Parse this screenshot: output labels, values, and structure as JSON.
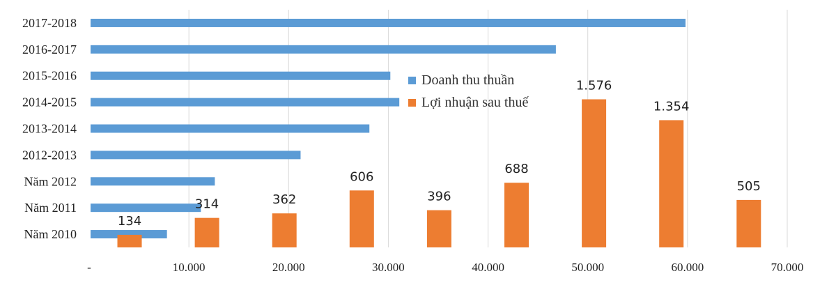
{
  "chart_data": {
    "type": "bar",
    "categories": [
      "Năm 2010",
      "Năm 2011",
      "Năm 2012",
      "2012-2013",
      "2013-2014",
      "2014-2015",
      "2015-2016",
      "2016-2017",
      "2017-2018"
    ],
    "x_ticks": [
      "-",
      "10.000",
      "20.000",
      "30.000",
      "40.000",
      "50.000",
      "60.000",
      "70.000"
    ],
    "xlim": [
      0,
      70000
    ],
    "grid": "vertical",
    "legend_position": "center",
    "series": [
      {
        "name": "Doanh thu thuần",
        "color": "#5B9BD5",
        "orientation": "horizontal",
        "values": [
          7800,
          11200,
          12600,
          21200,
          28100,
          31100,
          30200,
          46800,
          59800
        ]
      },
      {
        "name": "Lợi nhuận sau thuế",
        "color": "#ED7D31",
        "orientation": "vertical",
        "values": [
          134,
          314,
          362,
          606,
          396,
          688,
          1576,
          1354,
          505
        ],
        "labels": [
          "134",
          "314",
          "362",
          "606",
          "396",
          "688",
          "1.576",
          "1.354",
          "505"
        ]
      }
    ]
  }
}
